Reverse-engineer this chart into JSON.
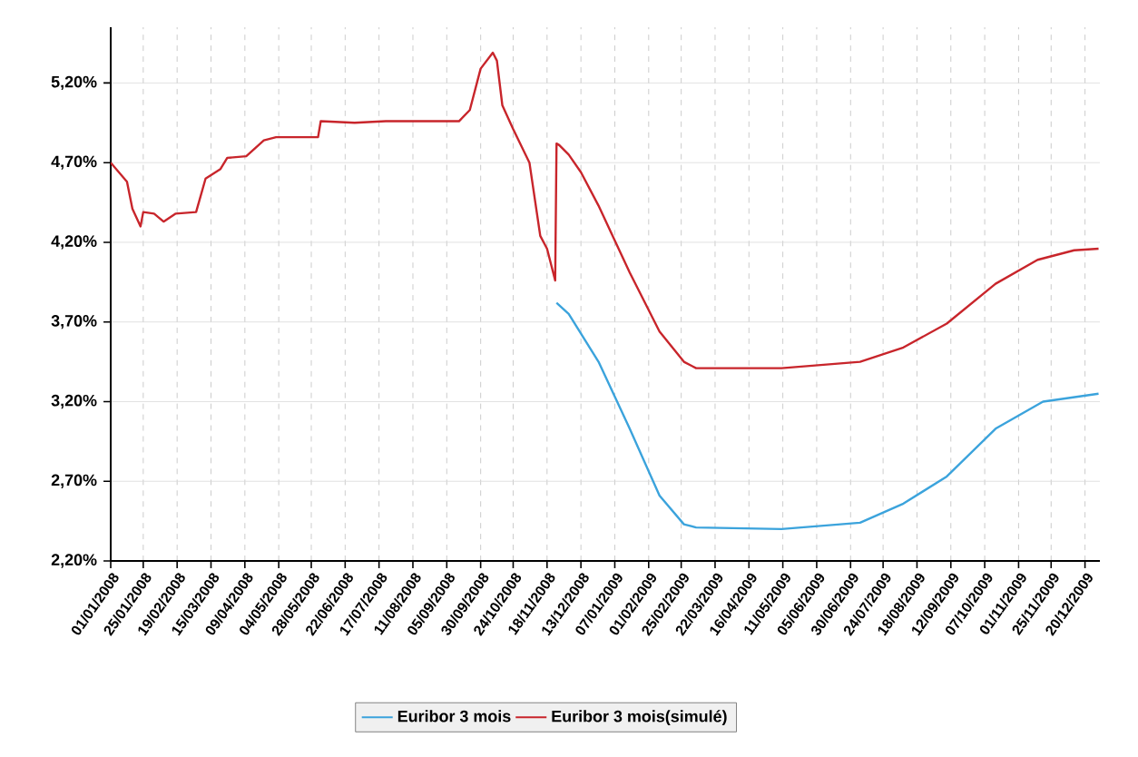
{
  "chart_data": {
    "type": "line",
    "series": [
      {
        "name": "Euribor 3 mois",
        "color": "#3ba3dc",
        "x": [
          "2008-11-25",
          "2008-12-04",
          "2008-12-26",
          "2009-01-18",
          "2009-02-09",
          "2009-02-27",
          "2009-03-08",
          "2009-05-10",
          "2009-07-07",
          "2009-08-08",
          "2009-09-09",
          "2009-10-15",
          "2009-11-19",
          "2009-12-30"
        ],
        "values": [
          3.82,
          3.75,
          3.45,
          3.03,
          2.61,
          2.43,
          2.41,
          2.4,
          2.44,
          2.56,
          2.73,
          3.03,
          3.2,
          3.25
        ]
      },
      {
        "name": "Euribor 3 mois(simulé)",
        "color": "#c8252b",
        "x": [
          "2008-01-01",
          "2008-01-13",
          "2008-01-17",
          "2008-01-23",
          "2008-01-25",
          "2008-02-02",
          "2008-02-09",
          "2008-02-18",
          "2008-03-04",
          "2008-03-11",
          "2008-03-22",
          "2008-03-27",
          "2008-04-10",
          "2008-04-23",
          "2008-05-02",
          "2008-06-02",
          "2008-06-04",
          "2008-06-29",
          "2008-07-22",
          "2008-09-14",
          "2008-09-22",
          "2008-09-30",
          "2008-10-09",
          "2008-10-12",
          "2008-10-16",
          "2008-10-24",
          "2008-11-05",
          "2008-11-13",
          "2008-11-18",
          "2008-11-24",
          "2008-11-25",
          "2008-11-27",
          "2008-12-04",
          "2008-12-13",
          "2008-12-26",
          "2009-01-18",
          "2009-02-09",
          "2009-02-27",
          "2009-03-08",
          "2009-05-10",
          "2009-07-07",
          "2009-08-08",
          "2009-09-09",
          "2009-10-15",
          "2009-11-15",
          "2009-12-12",
          "2009-12-30"
        ],
        "values": [
          4.7,
          4.58,
          4.41,
          4.3,
          4.39,
          4.38,
          4.33,
          4.38,
          4.39,
          4.6,
          4.66,
          4.73,
          4.74,
          4.84,
          4.86,
          4.86,
          4.96,
          4.95,
          4.96,
          4.96,
          5.03,
          5.29,
          5.39,
          5.34,
          5.06,
          4.91,
          4.7,
          4.24,
          4.16,
          3.96,
          4.82,
          4.81,
          4.75,
          4.64,
          4.43,
          4.01,
          3.64,
          3.45,
          3.41,
          3.41,
          3.45,
          3.54,
          3.69,
          3.94,
          4.09,
          4.15,
          4.16
        ]
      }
    ],
    "xlim": [
      "2008-01-01",
      "2009-12-31"
    ],
    "xticks": [
      {
        "value": "2008-01-01",
        "label": "01/01/2008"
      },
      {
        "value": "2008-01-25",
        "label": "25/01/2008"
      },
      {
        "value": "2008-02-19",
        "label": "19/02/2008"
      },
      {
        "value": "2008-03-15",
        "label": "15/03/2008"
      },
      {
        "value": "2008-04-09",
        "label": "09/04/2008"
      },
      {
        "value": "2008-05-04",
        "label": "04/05/2008"
      },
      {
        "value": "2008-05-28",
        "label": "28/05/2008"
      },
      {
        "value": "2008-06-22",
        "label": "22/06/2008"
      },
      {
        "value": "2008-07-17",
        "label": "17/07/2008"
      },
      {
        "value": "2008-08-11",
        "label": "11/08/2008"
      },
      {
        "value": "2008-09-05",
        "label": "05/09/2008"
      },
      {
        "value": "2008-09-30",
        "label": "30/09/2008"
      },
      {
        "value": "2008-10-24",
        "label": "24/10/2008"
      },
      {
        "value": "2008-11-18",
        "label": "18/11/2008"
      },
      {
        "value": "2008-12-13",
        "label": "13/12/2008"
      },
      {
        "value": "2009-01-07",
        "label": "07/01/2009"
      },
      {
        "value": "2009-02-01",
        "label": "01/02/2009"
      },
      {
        "value": "2009-02-25",
        "label": "25/02/2009"
      },
      {
        "value": "2009-03-22",
        "label": "22/03/2009"
      },
      {
        "value": "2009-04-16",
        "label": "16/04/2009"
      },
      {
        "value": "2009-05-11",
        "label": "11/05/2009"
      },
      {
        "value": "2009-06-05",
        "label": "05/06/2009"
      },
      {
        "value": "2009-06-30",
        "label": "30/06/2009"
      },
      {
        "value": "2009-07-24",
        "label": "24/07/2009"
      },
      {
        "value": "2009-08-18",
        "label": "18/08/2009"
      },
      {
        "value": "2009-09-12",
        "label": "12/09/2009"
      },
      {
        "value": "2009-10-07",
        "label": "07/10/2009"
      },
      {
        "value": "2009-11-01",
        "label": "01/11/2009"
      },
      {
        "value": "2009-11-25",
        "label": "25/11/2009"
      },
      {
        "value": "2009-12-20",
        "label": "20/12/2009"
      }
    ],
    "ylim": [
      2.2,
      5.55
    ],
    "yticks": [
      {
        "value": 2.2,
        "label": "2,20%"
      },
      {
        "value": 2.7,
        "label": "2,70%"
      },
      {
        "value": 3.2,
        "label": "3,20%"
      },
      {
        "value": 3.7,
        "label": "3,70%"
      },
      {
        "value": 4.2,
        "label": "4,20%"
      },
      {
        "value": 4.7,
        "label": "4,70%"
      },
      {
        "value": 5.2,
        "label": "5,20%"
      }
    ],
    "grid": true,
    "legend": "bottom",
    "marker": "none",
    "line_style": "solid"
  }
}
